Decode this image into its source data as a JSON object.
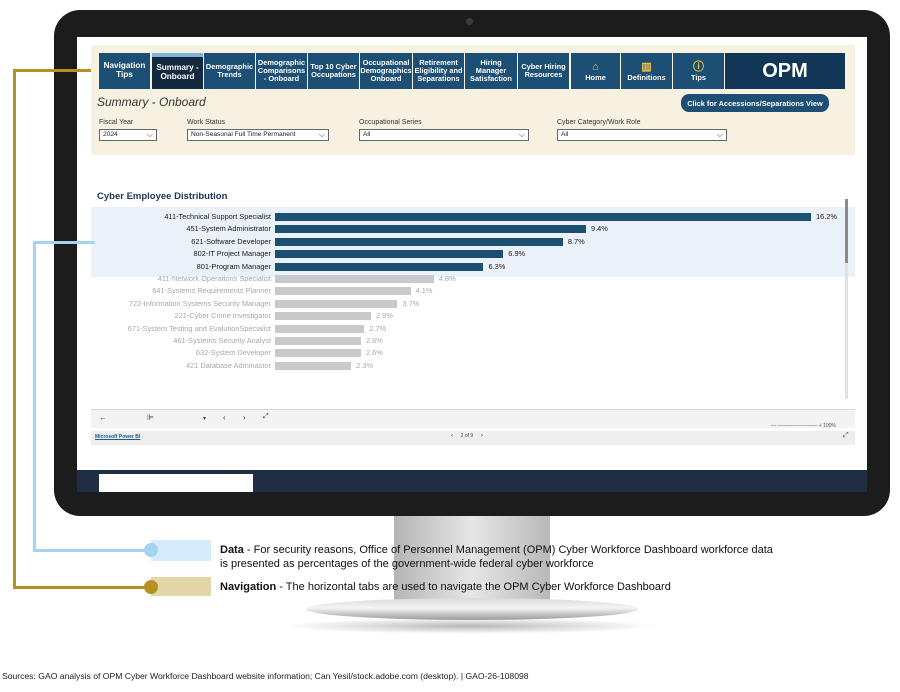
{
  "nav_tabs": [
    {
      "label": "Navigation Tips",
      "active": false
    },
    {
      "label": "Summary - Onboard",
      "active": true
    },
    {
      "label": "Demographic Trends",
      "active": false
    },
    {
      "label": "Demographic Comparisons - Onboard",
      "active": false
    },
    {
      "label": "Top 10 Cyber Occupations",
      "active": false
    },
    {
      "label": "Occupational Demographics Onboard",
      "active": false
    },
    {
      "label": "Retirement Eligibility and Separations",
      "active": false
    },
    {
      "label": "Hiring Manager Satisfaction",
      "active": false
    },
    {
      "label": "Cyber Hiring Resources",
      "active": false
    }
  ],
  "icon_tabs": [
    {
      "label": "Home",
      "icon": "home-icon"
    },
    {
      "label": "Definitions",
      "icon": "book-icon"
    },
    {
      "label": "Tips",
      "icon": "info-icon"
    }
  ],
  "logo_text": "OPM",
  "summary_title": "Summary - Onboard",
  "accessions_button": "Click for Accessions/Separations View",
  "filters": [
    {
      "label": "Fiscal Year",
      "value": "2024"
    },
    {
      "label": "Work Status",
      "value": "Non-Seasonal Full Time Permanent"
    },
    {
      "label": "Occupational Series",
      "value": "All"
    },
    {
      "label": "Cyber Category/Work Role",
      "value": "All"
    }
  ],
  "chart_data": {
    "type": "bar",
    "orientation": "horizontal",
    "title": "Cyber Employee Distribution",
    "categories": [
      "411-Technical Support Specialist",
      "451-System Administrator",
      "621-Software Developer",
      "802-IT Project Manager",
      "801-Program Manager",
      "411-Network Operations Specialist",
      "641-Systems Requirements Planner",
      "722-Information Systems Security Manager",
      "221-Cyber Crime Investigator",
      "671-System Testing and EvalutionSpecialist",
      "461-Systems Security Analyst",
      "632-System Developer",
      "421 Database Adminastor"
    ],
    "values": [
      16.2,
      9.4,
      8.7,
      6.9,
      6.3,
      4.8,
      4.1,
      3.7,
      2.9,
      2.7,
      2.6,
      2.6,
      2.3
    ],
    "value_labels": [
      "16.2%",
      "9.4%",
      "8.7%",
      "6.9%",
      "6.3%",
      "4.8%",
      "4.1%",
      "3.7%",
      "2.9%",
      "2.7%",
      "2.6%",
      "2.6%",
      "2.3%"
    ],
    "highlighted_count": 5,
    "highlight_color": "#1d4e73",
    "muted_color": "#c9c9c9"
  },
  "pbi_link": "Microsoft Power BI",
  "pager_text": "2 of 9",
  "zoom_text": "100%",
  "callouts": {
    "data_title": "Data",
    "data_text": " - For security reasons, Office of Personnel Management (OPM) Cyber Workforce Dashboard workforce data is presented as percentages of the government-wide federal cyber workforce",
    "nav_title": "Navigation",
    "nav_text": " - The horizontal tabs are used to navigate the OPM Cyber Workforce Dashboard"
  },
  "source": "Sources: GAO analysis of OPM Cyber Workforce Dashboard website information; Can Yesil/stock.adobe.com (desktop).  |  GAO-26-108098"
}
